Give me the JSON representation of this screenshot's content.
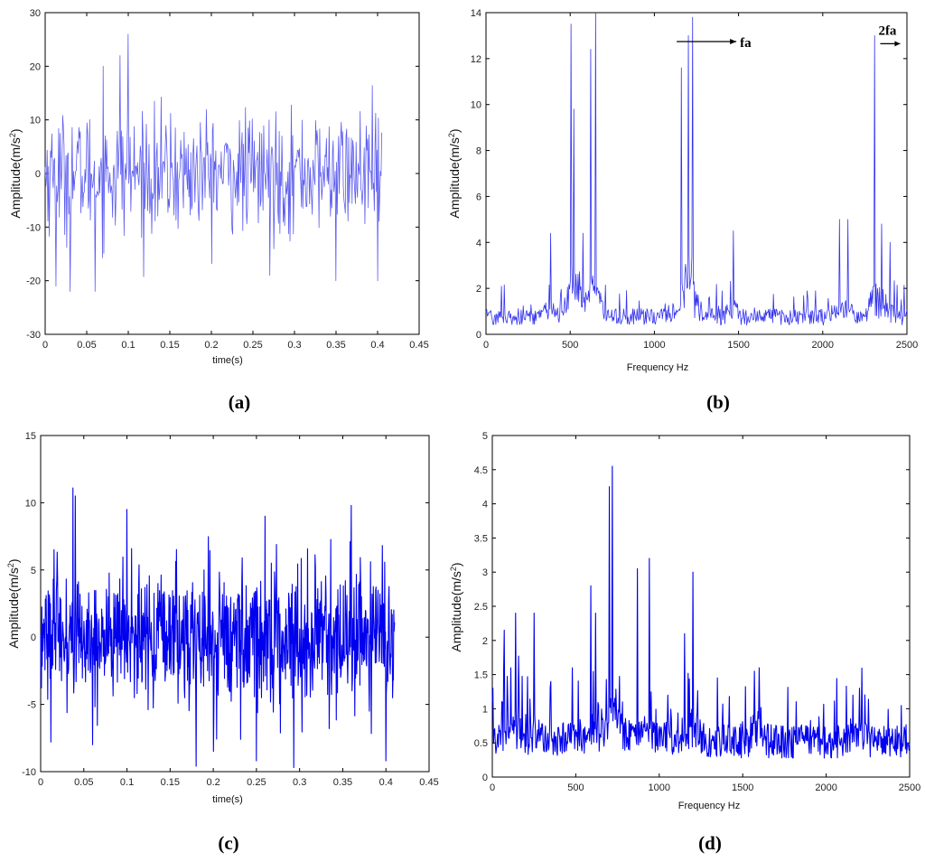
{
  "panels": [
    {
      "id": "a",
      "caption": "(a)",
      "chart_data": {
        "type": "line",
        "xlabel": "time(s)",
        "ylabel": "Amplitude(m/s2)",
        "xlim": [
          0,
          0.45
        ],
        "ylim": [
          -30,
          30
        ],
        "xticks": [
          0,
          0.05,
          0.1,
          0.15,
          0.2,
          0.25,
          0.3,
          0.35,
          0.4,
          0.45
        ],
        "xtick_labels": [
          "0",
          "0.05",
          "0.1",
          "0.15",
          "0.2",
          "0.25",
          "0.3",
          "0.35",
          "0.4",
          "0.45"
        ],
        "yticks": [
          -30,
          -20,
          -10,
          0,
          10,
          20,
          30
        ],
        "ytick_labels": [
          "-30",
          "-20",
          "-10",
          "0",
          "10",
          "20",
          "30"
        ],
        "signal": {
          "x_start": 0,
          "x_end": 0.405,
          "points": 500,
          "rms": 5.5,
          "peaks": [
            [
              0.1,
              26
            ],
            [
              0.07,
              20
            ],
            [
              0.013,
              -21
            ],
            [
              0.03,
              -22
            ],
            [
              0.09,
              22
            ],
            [
              0.27,
              -19
            ],
            [
              0.35,
              -20
            ],
            [
              0.4,
              -20
            ],
            [
              0.06,
              -22
            ]
          ]
        },
        "line_color": "#5d5df0",
        "grid": false
      }
    },
    {
      "id": "b",
      "caption": "(b)",
      "chart_data": {
        "type": "line",
        "xlabel": "Frequency Hz",
        "ylabel": "Amplitude(m/s2)",
        "xlim": [
          0,
          2500
        ],
        "ylim": [
          0,
          14
        ],
        "xticks": [
          0,
          500,
          1000,
          1500,
          2000,
          2500
        ],
        "xtick_labels": [
          "0",
          "500",
          "1000",
          "1500",
          "2000",
          "2500"
        ],
        "yticks": [
          0,
          2,
          4,
          6,
          8,
          10,
          12,
          14
        ],
        "ytick_labels": [
          "0",
          "2",
          "4",
          "6",
          "8",
          "10",
          "12",
          "14"
        ],
        "spectrum": {
          "x_start": 0,
          "x_end": 2500,
          "points": 600,
          "baseline": 0.8,
          "peaks": [
            [
              505,
              13.5
            ],
            [
              520,
              9.8
            ],
            [
              620,
              12.4
            ],
            [
              650,
              14
            ],
            [
              575,
              4.4
            ],
            [
              385,
              4.4
            ],
            [
              1160,
              11.6
            ],
            [
              1200,
              13
            ],
            [
              1225,
              13.8
            ],
            [
              1470,
              4.5
            ],
            [
              2100,
              5
            ],
            [
              2150,
              5
            ],
            [
              2310,
              13
            ],
            [
              2350,
              4.8
            ],
            [
              2400,
              4
            ]
          ]
        },
        "line_color": "#3333ee",
        "annotations": [
          {
            "text": "fa",
            "x": 1240,
            "y": 12.9
          },
          {
            "text": "2fa",
            "x": 2320,
            "y": 13.2
          }
        ],
        "grid": false
      }
    },
    {
      "id": "c",
      "caption": "(c)",
      "chart_data": {
        "type": "line",
        "xlabel": "time(s)",
        "ylabel": "Amplitude(m/s2)",
        "xlim": [
          0,
          0.45
        ],
        "ylim": [
          -10,
          15
        ],
        "xticks": [
          0,
          0.05,
          0.1,
          0.15,
          0.2,
          0.25,
          0.3,
          0.35,
          0.4,
          0.45
        ],
        "xtick_labels": [
          "0",
          "0.05",
          "0.1",
          "0.15",
          "0.2",
          "0.25",
          "0.3",
          "0.35",
          "0.4",
          "0.45"
        ],
        "yticks": [
          -10,
          -5,
          0,
          5,
          10,
          15
        ],
        "ytick_labels": [
          "-10",
          "-5",
          "0",
          "5",
          "10",
          "15"
        ],
        "signal": {
          "x_start": 0,
          "x_end": 0.41,
          "points": 900,
          "rms": 2.5,
          "peaks": [
            [
              0.04,
              10.5
            ],
            [
              0.1,
              9.5
            ],
            [
              0.26,
              9
            ],
            [
              0.36,
              9.8
            ],
            [
              0.18,
              -9.6
            ],
            [
              0.25,
              -9.2
            ],
            [
              0.4,
              -9.2
            ],
            [
              0.06,
              -8
            ],
            [
              0.2,
              -8.5
            ]
          ]
        },
        "line_color": "#0000ee",
        "grid": false
      }
    },
    {
      "id": "d",
      "caption": "(d)",
      "chart_data": {
        "type": "line",
        "xlabel": "Frequency Hz",
        "ylabel": "Amplitude(m/s2)",
        "xlim": [
          0,
          2500
        ],
        "ylim": [
          0,
          5
        ],
        "xticks": [
          0,
          500,
          1000,
          1500,
          2000,
          2500
        ],
        "xtick_labels": [
          "0",
          "500",
          "1000",
          "1500",
          "2000",
          "2500"
        ],
        "yticks": [
          0,
          0.5,
          1,
          1.5,
          2,
          2.5,
          3,
          3.5,
          4,
          4.5,
          5
        ],
        "ytick_labels": [
          "0",
          "0.5",
          "1",
          "1.5",
          "2",
          "2.5",
          "3",
          "3.5",
          "4",
          "4.5",
          "5"
        ],
        "spectrum": {
          "x_start": 0,
          "x_end": 2500,
          "points": 700,
          "baseline": 0.55,
          "peaks": [
            [
              70,
              2.15
            ],
            [
              140,
              2.4
            ],
            [
              250,
              2.4
            ],
            [
              590,
              2.8
            ],
            [
              620,
              2.4
            ],
            [
              700,
              4.25
            ],
            [
              720,
              4.55
            ],
            [
              870,
              3.05
            ],
            [
              940,
              3.2
            ],
            [
              1150,
              2.1
            ],
            [
              1200,
              3
            ],
            [
              1570,
              1.55
            ],
            [
              1600,
              1.6
            ],
            [
              2160,
              1.2
            ],
            [
              2200,
              1.3
            ],
            [
              110,
              1.6
            ],
            [
              350,
              1.4
            ],
            [
              480,
              1.6
            ],
            [
              780,
              1.1
            ],
            [
              1050,
              1.2
            ]
          ]
        },
        "line_color": "#0000ee",
        "grid": false
      }
    }
  ]
}
